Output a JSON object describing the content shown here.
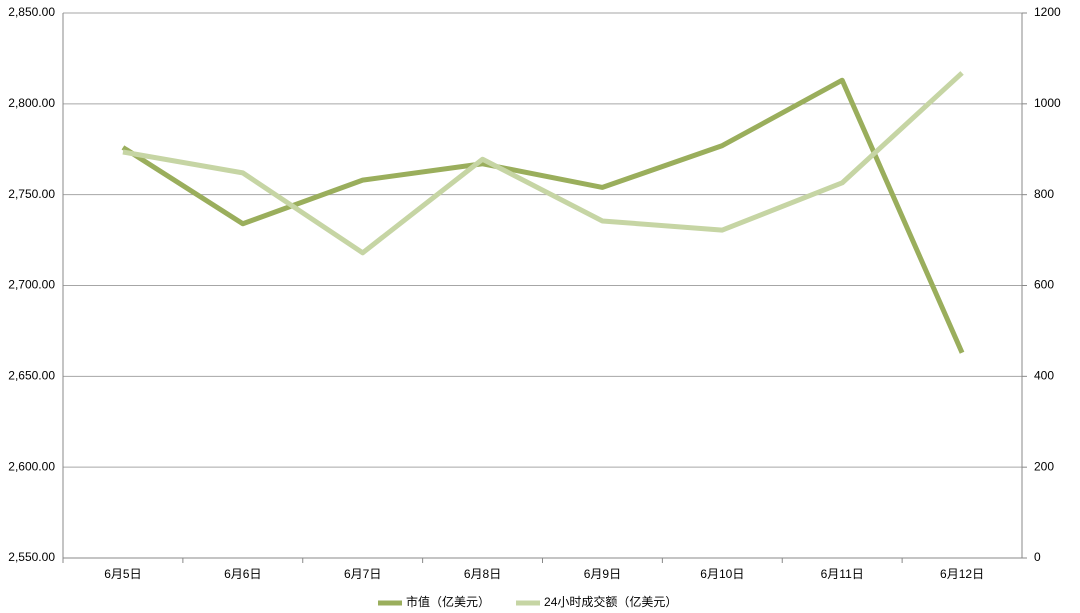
{
  "chart_data": {
    "type": "line",
    "categories": [
      "6月5日",
      "6月6日",
      "6月7日",
      "6月8日",
      "6月9日",
      "6月10日",
      "6月11日",
      "6月12日"
    ],
    "series": [
      {
        "name": "市值（亿美元）",
        "color": "#9aae5c",
        "values": [
          2776,
          2734,
          2758,
          2767,
          2754,
          2777,
          2813,
          2663
        ]
      },
      {
        "name": "24小时成交额（亿美元）",
        "color": "#c6d5a4",
        "axis": "y2",
        "values": [
          894,
          848,
          672,
          878,
          742,
          722,
          826,
          1068
        ]
      }
    ],
    "ylim": [
      2550,
      2850
    ],
    "yticks": [
      {
        "value": 2550,
        "label": "2,550.00"
      },
      {
        "value": 2600,
        "label": "2,600.00"
      },
      {
        "value": 2650,
        "label": "2,650.00"
      },
      {
        "value": 2700,
        "label": "2,700.00"
      },
      {
        "value": 2750,
        "label": "2,750.00"
      },
      {
        "value": 2800,
        "label": "2,800.00"
      },
      {
        "value": 2850,
        "label": "2,850.00"
      }
    ],
    "y2lim": [
      0,
      1200
    ],
    "y2ticks": [
      0,
      200,
      400,
      600,
      800,
      1000,
      1200
    ],
    "grid": true,
    "legend": "bottom"
  }
}
